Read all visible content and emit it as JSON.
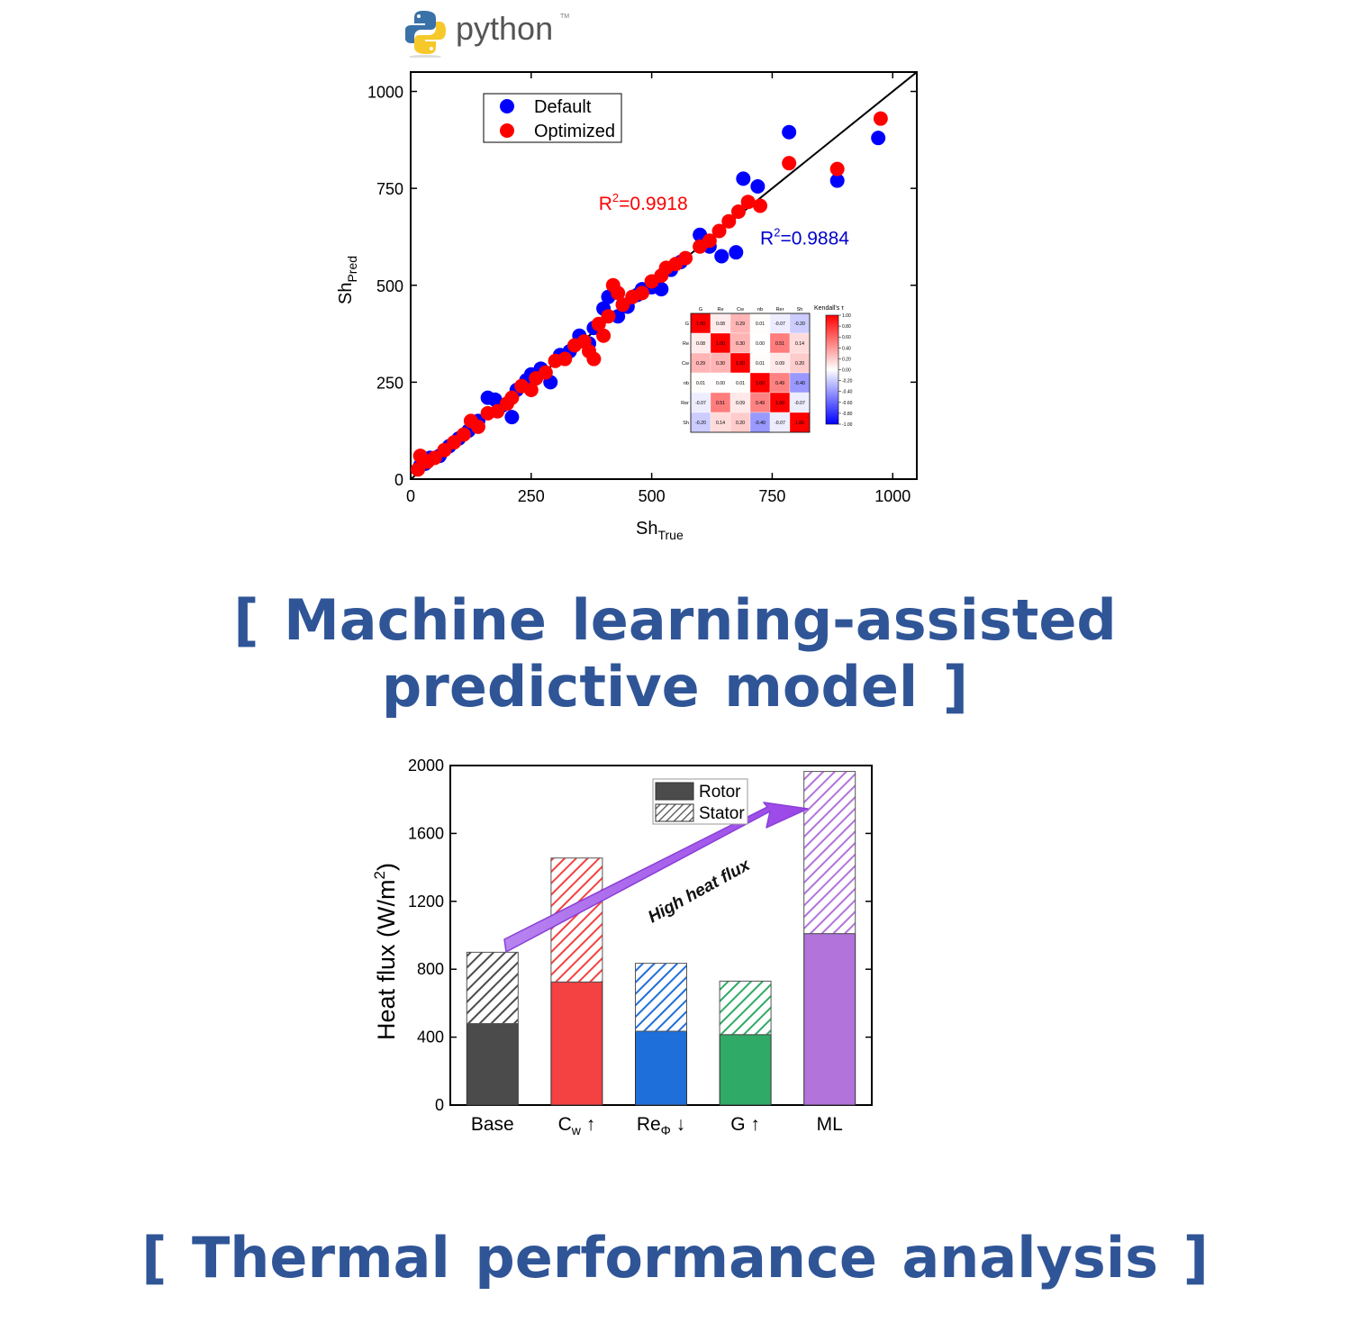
{
  "logo": {
    "text": "python",
    "tm": "TM"
  },
  "captions": {
    "top_line1": "[ Machine learning-assisted",
    "top_line2": "predictive model ]",
    "bottom": "[ Thermal performance analysis ]"
  },
  "colors": {
    "caption": "#2f5597",
    "default": "#0000ff",
    "optimized": "#ff0000"
  },
  "chart_data": [
    {
      "type": "scatter",
      "xlabel": "Sh",
      "xlabel_sub": "True",
      "ylabel": "Sh",
      "ylabel_sub": "Pred",
      "xlim": [
        0,
        1050
      ],
      "ylim": [
        0,
        1050
      ],
      "xticks": [
        0,
        250,
        500,
        750,
        1000
      ],
      "yticks": [
        0,
        250,
        500,
        750,
        1000
      ],
      "legend": {
        "placement": "top-left",
        "entries": [
          "Default",
          "Optimized"
        ]
      },
      "annotations": [
        {
          "text": "R",
          "sup": "2",
          "rest": "=0.9918",
          "color": "#ff0000",
          "x": 390,
          "y": 695
        },
        {
          "text": "R",
          "sup": "2",
          "rest": "=0.9884",
          "color": "#0000cc",
          "x": 725,
          "y": 605
        }
      ],
      "reference_line": [
        [
          0,
          0
        ],
        [
          1050,
          1050
        ]
      ],
      "series": [
        {
          "name": "Default",
          "color": "#0000ff",
          "points": [
            [
              20,
              35
            ],
            [
              30,
              40
            ],
            [
              40,
              55
            ],
            [
              60,
              60
            ],
            [
              80,
              85
            ],
            [
              100,
              105
            ],
            [
              120,
              125
            ],
            [
              140,
              150
            ],
            [
              160,
              210
            ],
            [
              175,
              205
            ],
            [
              190,
              190
            ],
            [
              210,
              160
            ],
            [
              220,
              230
            ],
            [
              240,
              255
            ],
            [
              250,
              270
            ],
            [
              270,
              285
            ],
            [
              290,
              250
            ],
            [
              310,
              320
            ],
            [
              330,
              330
            ],
            [
              350,
              370
            ],
            [
              370,
              350
            ],
            [
              380,
              390
            ],
            [
              400,
              440
            ],
            [
              410,
              470
            ],
            [
              430,
              420
            ],
            [
              450,
              445
            ],
            [
              470,
              475
            ],
            [
              480,
              490
            ],
            [
              500,
              495
            ],
            [
              520,
              490
            ],
            [
              540,
              540
            ],
            [
              560,
              560
            ],
            [
              600,
              630
            ],
            [
              620,
              600
            ],
            [
              645,
              575
            ],
            [
              675,
              585
            ],
            [
              690,
              775
            ],
            [
              720,
              755
            ],
            [
              785,
              895
            ],
            [
              885,
              770
            ],
            [
              970,
              880
            ]
          ]
        },
        {
          "name": "Optimized",
          "color": "#ff0000",
          "points": [
            [
              15,
              25
            ],
            [
              20,
              60
            ],
            [
              35,
              45
            ],
            [
              50,
              55
            ],
            [
              70,
              75
            ],
            [
              90,
              95
            ],
            [
              110,
              115
            ],
            [
              125,
              150
            ],
            [
              140,
              135
            ],
            [
              160,
              170
            ],
            [
              180,
              175
            ],
            [
              200,
              195
            ],
            [
              210,
              210
            ],
            [
              230,
              240
            ],
            [
              250,
              230
            ],
            [
              260,
              260
            ],
            [
              280,
              275
            ],
            [
              300,
              305
            ],
            [
              320,
              310
            ],
            [
              340,
              345
            ],
            [
              360,
              355
            ],
            [
              370,
              330
            ],
            [
              380,
              310
            ],
            [
              390,
              400
            ],
            [
              400,
              370
            ],
            [
              410,
              420
            ],
            [
              420,
              500
            ],
            [
              430,
              480
            ],
            [
              440,
              450
            ],
            [
              460,
              470
            ],
            [
              480,
              480
            ],
            [
              500,
              510
            ],
            [
              520,
              525
            ],
            [
              530,
              545
            ],
            [
              550,
              555
            ],
            [
              570,
              570
            ],
            [
              600,
              600
            ],
            [
              620,
              615
            ],
            [
              640,
              640
            ],
            [
              660,
              665
            ],
            [
              680,
              690
            ],
            [
              700,
              715
            ],
            [
              725,
              705
            ],
            [
              785,
              815
            ],
            [
              885,
              800
            ],
            [
              975,
              930
            ]
          ]
        }
      ]
    },
    {
      "type": "table",
      "title": "Kendall's τ",
      "labels": [
        "G",
        "Re",
        "Cw",
        "nb",
        "Rer",
        "Sh"
      ],
      "values": [
        [
          1.0,
          0.08,
          0.29,
          0.01,
          -0.07,
          -0.2
        ],
        [
          0.08,
          1.0,
          0.3,
          0.0,
          0.51,
          0.14
        ],
        [
          0.29,
          0.3,
          1.0,
          0.01,
          0.09,
          0.2
        ],
        [
          0.01,
          0.0,
          0.01,
          1.0,
          0.49,
          -0.4
        ],
        [
          -0.07,
          0.51,
          0.09,
          0.49,
          1.0,
          -0.07
        ],
        [
          -0.2,
          0.14,
          0.2,
          -0.4,
          -0.07,
          1.0
        ]
      ],
      "colorbar_ticks": [
        "1.00",
        "0.80",
        "0.60",
        "0.40",
        "0.20",
        "0.00",
        "-0.20",
        "-0.40",
        "-0.60",
        "-0.80",
        "-1.00"
      ]
    },
    {
      "type": "bar",
      "stacked": true,
      "ylabel": "Heat flux (W/m",
      "ylabel_sup": "2",
      "ylabel_end": ")",
      "ylim": [
        0,
        2000
      ],
      "yticks": [
        0,
        400,
        800,
        1200,
        1600,
        2000
      ],
      "categories": [
        {
          "main": "Base",
          "sub": "",
          "arrow": ""
        },
        {
          "main": "C",
          "sub": "w",
          "arrow": " ↑"
        },
        {
          "main": "Re",
          "sub": "Φ",
          "arrow": " ↓"
        },
        {
          "main": "G",
          "sub": "",
          "arrow": " ↑"
        },
        {
          "main": "ML",
          "sub": "",
          "arrow": ""
        }
      ],
      "colors": [
        "#4b4b4b",
        "#f44141",
        "#1e6fd9",
        "#2faa67",
        "#b273db"
      ],
      "series": [
        {
          "name": "Rotor",
          "values": [
            480,
            725,
            435,
            415,
            1010
          ]
        },
        {
          "name": "Stator",
          "values": [
            420,
            730,
            400,
            315,
            955
          ]
        }
      ],
      "legend": {
        "placement": "top-right",
        "entries": [
          "Rotor",
          "Stator"
        ]
      },
      "annotation": "High heat flux"
    }
  ]
}
